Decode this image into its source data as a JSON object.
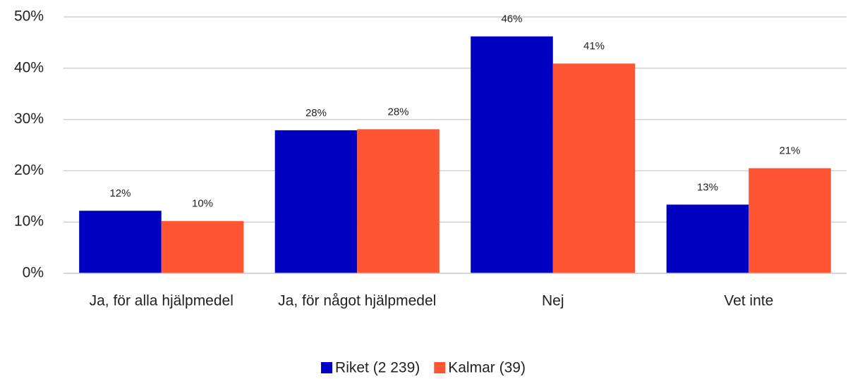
{
  "chart_data": {
    "type": "bar",
    "categories": [
      "Ja, för alla hjälpmedel",
      "Ja, för något hjälpmedel",
      "Nej",
      "Vet inte"
    ],
    "series": [
      {
        "name": "Riket (2 239)",
        "color": "#0000c0",
        "values": [
          12.2,
          27.9,
          46.2,
          13.4
        ],
        "value_labels": [
          "12%",
          "28%",
          "46%",
          "13%"
        ]
      },
      {
        "name": "Kalmar (39)",
        "color": "#ff5533",
        "values": [
          10.2,
          28.1,
          40.9,
          20.5
        ],
        "value_labels": [
          "10%",
          "28%",
          "41%",
          "21%"
        ]
      }
    ],
    "ylim": [
      0,
      50
    ],
    "yticks": [
      {
        "value": 0,
        "label": "0%"
      },
      {
        "value": 10,
        "label": "10%"
      },
      {
        "value": 20,
        "label": "20%"
      },
      {
        "value": 30,
        "label": "30%"
      },
      {
        "value": 40,
        "label": "40%"
      },
      {
        "value": 50,
        "label": "50%"
      }
    ],
    "grid": true,
    "legend": "bottom"
  }
}
